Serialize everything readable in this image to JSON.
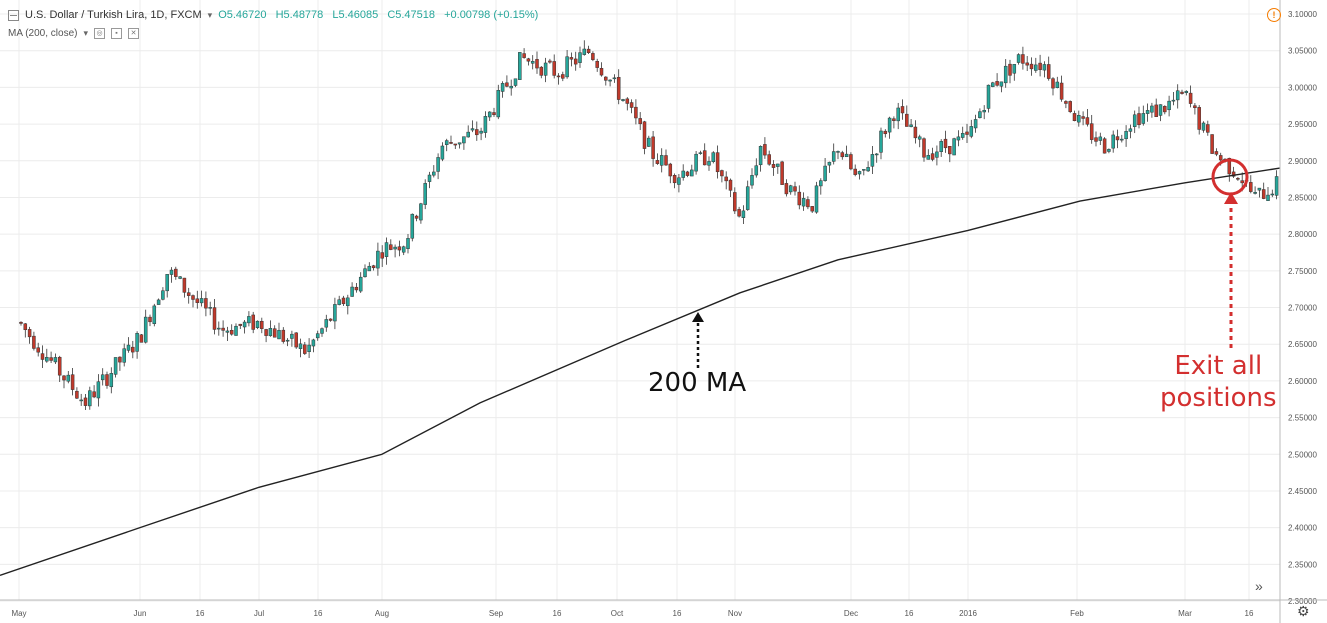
{
  "legend": {
    "symbol": "U.S. Dollar / Turkish Lira, 1D, FXCM",
    "open": "O5.46720",
    "high": "H5.48778",
    "low": "L5.46085",
    "close": "C5.47518",
    "change": "+0.00798 (+0.15%)",
    "indicator": "MA (200, close)"
  },
  "annotations": {
    "ma_label": "200 MA",
    "exit_line1": "Exit all",
    "exit_line2": "positions"
  },
  "colors": {
    "up": "#26a69a",
    "down": "#c0392b",
    "ma": "#222222",
    "annotation_red": "#d32f2f",
    "grid": "#ececec"
  },
  "icons": {
    "collapse": "collapse-icon",
    "info": "info-icon",
    "scroll": "scroll-right-icon",
    "settings": "gear-icon"
  },
  "chart_data": {
    "type": "candlestick",
    "title": "",
    "xlabel": "",
    "ylabel": "",
    "ylim": [
      2.3,
      3.1
    ],
    "y_ticks": [
      "3.10000",
      "3.05000",
      "3.00000",
      "2.95000",
      "2.90000",
      "2.85000",
      "2.80000",
      "2.75000",
      "2.70000",
      "2.65000",
      "2.60000",
      "2.55000",
      "2.50000",
      "2.45000",
      "2.40000",
      "2.35000",
      "2.30000"
    ],
    "x_ticks": [
      "May",
      "Jun",
      "16",
      "Jul",
      "16",
      "Aug",
      "Sep",
      "16",
      "Oct",
      "16",
      "Nov",
      "Dec",
      "16",
      "2016",
      "Feb",
      "Mar",
      "16"
    ],
    "price_path": [
      {
        "x": "May",
        "y": 2.68
      },
      {
        "x": "May 20",
        "y": 2.57
      },
      {
        "x": "Jun",
        "y": 2.66
      },
      {
        "x": "Jun 8",
        "y": 2.75
      },
      {
        "x": "Jun 22",
        "y": 2.67
      },
      {
        "x": "Jul",
        "y": 2.68
      },
      {
        "x": "Jul 16",
        "y": 2.64
      },
      {
        "x": "Aug",
        "y": 2.78
      },
      {
        "x": "Aug 16",
        "y": 2.79
      },
      {
        "x": "Aug 31",
        "y": 2.92
      },
      {
        "x": "Sep",
        "y": 2.94
      },
      {
        "x": "Sep 8",
        "y": 3.04
      },
      {
        "x": "Sep 16",
        "y": 3.02
      },
      {
        "x": "Sep 24",
        "y": 3.05
      },
      {
        "x": "Oct",
        "y": 2.98
      },
      {
        "x": "Oct 8",
        "y": 2.91
      },
      {
        "x": "Oct 16",
        "y": 2.88
      },
      {
        "x": "Oct 24",
        "y": 2.91
      },
      {
        "x": "Nov",
        "y": 2.82
      },
      {
        "x": "Nov 8",
        "y": 2.92
      },
      {
        "x": "Nov 16",
        "y": 2.86
      },
      {
        "x": "Nov 24",
        "y": 2.84
      },
      {
        "x": "Dec",
        "y": 2.92
      },
      {
        "x": "Dec 8",
        "y": 2.87
      },
      {
        "x": "Dec 16",
        "y": 2.97
      },
      {
        "x": "Dec 24",
        "y": 2.91
      },
      {
        "x": "2016",
        "y": 2.93
      },
      {
        "x": "Jan 8",
        "y": 3.0
      },
      {
        "x": "Jan 16",
        "y": 3.04
      },
      {
        "x": "Jan 24",
        "y": 3.03
      },
      {
        "x": "Feb",
        "y": 2.95
      },
      {
        "x": "Feb 8",
        "y": 2.92
      },
      {
        "x": "Feb 16",
        "y": 2.96
      },
      {
        "x": "Feb 24",
        "y": 2.97
      },
      {
        "x": "Mar",
        "y": 2.99
      },
      {
        "x": "Mar 8",
        "y": 2.91
      },
      {
        "x": "Mar 16",
        "y": 2.88
      },
      {
        "x": "Mar 20",
        "y": 2.85
      },
      {
        "x": "Mar 24",
        "y": 2.87
      }
    ],
    "series": [
      {
        "name": "MA (200, close)",
        "values": [
          {
            "x": "Apr 28",
            "y": 2.335
          },
          {
            "x": "Jun",
            "y": 2.4
          },
          {
            "x": "Jul",
            "y": 2.455
          },
          {
            "x": "Aug",
            "y": 2.5
          },
          {
            "x": "Sep",
            "y": 2.57
          },
          {
            "x": "Oct",
            "y": 2.655
          },
          {
            "x": "Nov",
            "y": 2.72
          },
          {
            "x": "Dec",
            "y": 2.765
          },
          {
            "x": "2016",
            "y": 2.805
          },
          {
            "x": "Feb",
            "y": 2.845
          },
          {
            "x": "Mar",
            "y": 2.87
          },
          {
            "x": "Mar 24",
            "y": 2.89
          }
        ]
      }
    ]
  }
}
